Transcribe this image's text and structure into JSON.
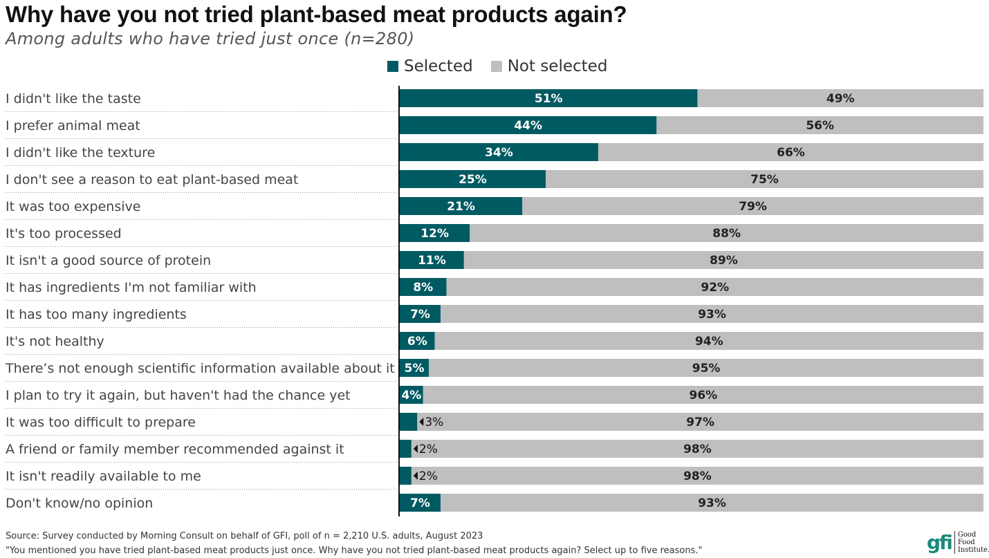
{
  "chart_data": {
    "type": "bar",
    "orientation": "horizontal",
    "stacked": true,
    "title": "Why have you not tried plant-based meat products again?",
    "subtitle": "Among adults who have tried just once (n=280)",
    "legend_position": "top",
    "categories": [
      "I didn't like the taste",
      "I prefer animal meat",
      "I didn't like the texture",
      "I don't see a reason to eat plant-based meat",
      "It was too expensive",
      "It's too processed",
      "It isn't a good source of protein",
      "It has ingredients I'm not familiar with",
      "It has too many ingredients",
      "It's not healthy",
      "There’s not enough scientific information available about it",
      "I plan to try it again, but haven't had the chance yet",
      "It was too difficult to prepare",
      "A friend or family member recommended against it",
      "It isn't readily available to me",
      "Don't know/no opinion"
    ],
    "series": [
      {
        "name": "Selected",
        "color": "#005a62",
        "values": [
          51,
          44,
          34,
          25,
          21,
          12,
          11,
          8,
          7,
          6,
          5,
          4,
          3,
          2,
          2,
          7
        ]
      },
      {
        "name": "Not selected",
        "color": "#bfbfbf",
        "values": [
          49,
          56,
          66,
          75,
          79,
          88,
          89,
          92,
          93,
          94,
          95,
          96,
          97,
          98,
          98,
          93
        ]
      }
    ],
    "xlim": [
      0,
      100
    ],
    "unit": "%"
  },
  "source": "Source: Survey conducted by Morning Consult on behalf of GFI, poll of n = 2,210 U.S. adults, August 2023",
  "question": "\"You mentioned you have tried plant-based meat products just once. Why have you not tried plant-based meat products again? Select up to five reasons.\"",
  "logo": {
    "mark": "gfi",
    "line1": "Good Food",
    "line2": "Institute."
  }
}
